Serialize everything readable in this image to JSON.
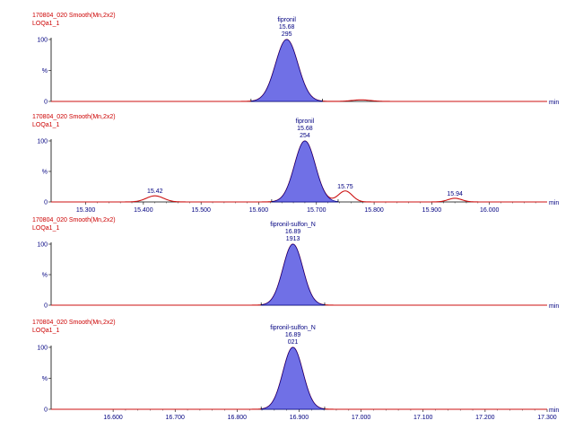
{
  "colors": {
    "trace": "#cc1111",
    "peak_fill": "#7070e6",
    "peak_line": "#000088",
    "axis": "#000000",
    "label": "#000080",
    "header": "#cc0000"
  },
  "chart_data": [
    {
      "type": "line",
      "header": "170804_020 Smooth(Mn,2x2)",
      "subheader": "LOQa1_1",
      "y_label": "%",
      "y_ticks": [
        "100",
        "%",
        "0"
      ],
      "x_ticks": [],
      "x_unit": "min",
      "xlim": [
        15.3,
        16.1
      ],
      "peaks": [
        {
          "center": 15.68,
          "sigma": 0.018,
          "height": 100,
          "filled": true,
          "name": "fipronil",
          "rt": "15.68",
          "area": "295"
        },
        {
          "center": 15.8,
          "sigma": 0.015,
          "height": 2.5,
          "filled": false
        }
      ]
    },
    {
      "type": "line",
      "header": "170804_020 Smooth(Mn,2x2)",
      "subheader": "LOQa1_1",
      "y_label": "%",
      "y_ticks": [
        "100",
        "%",
        "0"
      ],
      "x_ticks": [
        "15.300",
        "15.400",
        "15.500",
        "15.600",
        "15.700",
        "15.800",
        "15.900",
        "16.000"
      ],
      "x_unit": "min",
      "xlim": [
        15.24,
        16.1
      ],
      "peaks": [
        {
          "center": 15.68,
          "sigma": 0.018,
          "height": 100,
          "filled": true,
          "name": "fipronil",
          "rt": "15.68",
          "area": "254"
        },
        {
          "center": 15.42,
          "sigma": 0.015,
          "height": 10,
          "filled": false,
          "label": "15.42"
        },
        {
          "center": 15.75,
          "sigma": 0.012,
          "height": 18,
          "filled": false,
          "label": "15.75"
        },
        {
          "center": 15.94,
          "sigma": 0.012,
          "height": 6,
          "filled": false,
          "label": "15.94"
        }
      ]
    },
    {
      "type": "line",
      "header": "170804_020 Smooth(Mn,2x2)",
      "subheader": "LOQa1_1",
      "y_label": "%",
      "y_ticks": [
        "100",
        "%",
        "0"
      ],
      "x_ticks": [],
      "x_unit": "min",
      "xlim": [
        16.5,
        17.3
      ],
      "peaks": [
        {
          "center": 16.89,
          "sigma": 0.016,
          "height": 100,
          "filled": true,
          "name": "fipronil-sulfon_N",
          "rt": "16.89",
          "area": "1913"
        }
      ]
    },
    {
      "type": "line",
      "header": "170804_020 Smooth(Mn,2x2)",
      "subheader": "LOQa1_1",
      "y_label": "%",
      "y_ticks": [
        "100",
        "%",
        "0"
      ],
      "x_ticks": [
        "16.600",
        "16.700",
        "16.800",
        "16.900",
        "17.000",
        "17.100",
        "17.200",
        "17.300"
      ],
      "x_unit": "min",
      "xlim": [
        16.5,
        17.3
      ],
      "peaks": [
        {
          "center": 16.89,
          "sigma": 0.016,
          "height": 100,
          "filled": true,
          "name": "fipronil-sulfon_N",
          "rt": "16.89",
          "area": "021"
        }
      ]
    }
  ]
}
